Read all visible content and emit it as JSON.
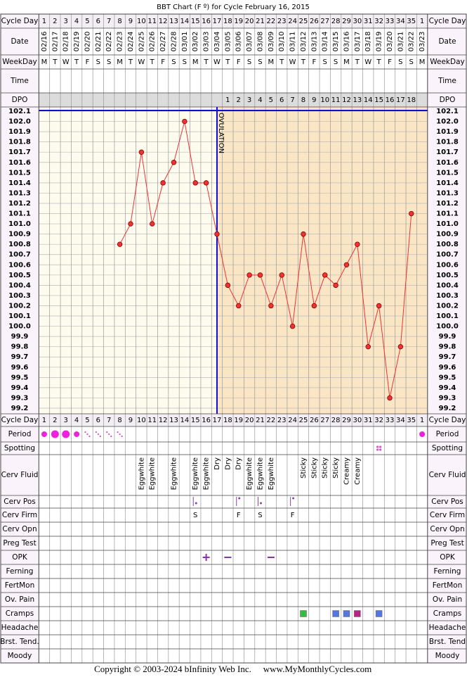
{
  "title": "BBT Chart (F º) for Cycle February 16, 2015",
  "footer": {
    "copyright": "Copyright © 2003-2024 bInfinity Web Inc.",
    "site": "www.MyMonthlyCycles.com"
  },
  "top_rows": [
    "Cycle Day",
    "Date",
    "WeekDay",
    "Time",
    "DPO"
  ],
  "bottom_rows_left": [
    "Cycle Day",
    "Period",
    "Spotting",
    "Cerv Fluid",
    "Cerv Pos",
    "Cerv Firm",
    "Cerv Opn",
    "Preg Test",
    "OPK",
    "Ferning",
    "FertMon",
    "Ov. Pain",
    "Cramps",
    "Headache",
    "Brst. Tend.",
    "Moody"
  ],
  "bottom_rows_right": [
    "Cycle Day",
    "Period",
    "Spotting",
    "Cerv Fluid",
    "Cerv Pos",
    "Cerv Firm",
    "Cerv Opn",
    "Preg Test",
    "OPK",
    "Ferning",
    "FertMon",
    "Ov. Pain",
    "Cramps",
    "Headache",
    "Brst. Tend",
    "Moody"
  ],
  "chart_data": {
    "type": "line",
    "categories": [
      "1",
      "2",
      "3",
      "4",
      "5",
      "6",
      "7",
      "8",
      "9",
      "10",
      "11",
      "12",
      "13",
      "14",
      "15",
      "16",
      "17",
      "18",
      "19",
      "20",
      "21",
      "22",
      "23",
      "24",
      "25",
      "26",
      "27",
      "28",
      "29",
      "30",
      "31",
      "32",
      "33",
      "34",
      "35",
      "1"
    ],
    "dates": [
      "02/16",
      "02/17",
      "02/18",
      "02/19",
      "02/20",
      "02/21",
      "02/22",
      "02/23",
      "02/24",
      "02/25",
      "02/26",
      "02/27",
      "02/28",
      "03/01",
      "03/02",
      "03/03",
      "03/04",
      "03/05",
      "03/06",
      "03/07",
      "03/08",
      "03/09",
      "03/10",
      "03/11",
      "03/12",
      "03/13",
      "03/14",
      "03/15",
      "03/16",
      "03/17",
      "03/18",
      "03/19",
      "03/20",
      "03/21",
      "03/22",
      "03/23"
    ],
    "weekdays": [
      "M",
      "T",
      "W",
      "T",
      "F",
      "S",
      "S",
      "M",
      "T",
      "W",
      "T",
      "F",
      "S",
      "S",
      "M",
      "T",
      "W",
      "T",
      "F",
      "S",
      "S",
      "M",
      "T",
      "W",
      "T",
      "F",
      "S",
      "S",
      "M",
      "T",
      "W",
      "T",
      "F",
      "S",
      "S",
      "M"
    ],
    "dpo": [
      null,
      null,
      null,
      null,
      null,
      null,
      null,
      null,
      null,
      null,
      null,
      null,
      null,
      null,
      null,
      null,
      null,
      1,
      2,
      3,
      4,
      5,
      6,
      7,
      8,
      9,
      10,
      11,
      12,
      13,
      14,
      15,
      16,
      17,
      18,
      null
    ],
    "values": [
      null,
      null,
      null,
      null,
      null,
      null,
      null,
      100.8,
      101.0,
      101.7,
      101.0,
      101.4,
      101.6,
      102.0,
      101.4,
      101.4,
      100.9,
      100.4,
      100.2,
      100.5,
      100.5,
      100.2,
      100.5,
      100.0,
      100.9,
      100.2,
      100.5,
      100.4,
      100.6,
      100.8,
      99.8,
      100.2,
      99.3,
      99.8,
      101.1,
      null
    ],
    "color": "#ee3333",
    "ylim": [
      99.2,
      102.1
    ],
    "yticks": [
      99.2,
      99.3,
      99.4,
      99.5,
      99.6,
      99.7,
      99.8,
      99.9,
      {
        "value": 100.0,
        "label": "100.0"
      },
      100.1,
      100.2,
      100.3,
      100.4,
      100.5,
      100.6,
      100.7,
      100.8,
      100.9,
      {
        "value": 101.0,
        "label": "101.0"
      },
      101.1,
      101.2,
      101.3,
      101.4,
      101.5,
      101.6,
      101.7,
      101.8,
      101.9,
      {
        "value": 102.0,
        "label": "102.0"
      },
      102.1
    ],
    "grid": true,
    "annotation": "OVULATION",
    "cervical_fluid": [
      null,
      null,
      null,
      null,
      null,
      null,
      null,
      null,
      null,
      "Eggwhite",
      "Eggwhite",
      null,
      "Eggwhite",
      null,
      "Eggwhite",
      "Eggwhite",
      "Dry",
      "Dry",
      "Dry",
      "Eggwhite",
      "Eggwhite",
      "Eggwhite",
      null,
      null,
      "Sticky",
      "Sticky",
      "Sticky",
      "Sticky",
      "Creamy",
      "Creamy",
      null,
      null,
      null,
      null,
      null,
      null
    ],
    "cervical_firmness": [
      null,
      null,
      null,
      null,
      null,
      null,
      null,
      null,
      null,
      null,
      null,
      null,
      null,
      null,
      "S",
      null,
      null,
      null,
      "F",
      null,
      "S",
      null,
      null,
      "F",
      null,
      null,
      null,
      null,
      null,
      null,
      null,
      null,
      null,
      null,
      null,
      null
    ]
  }
}
